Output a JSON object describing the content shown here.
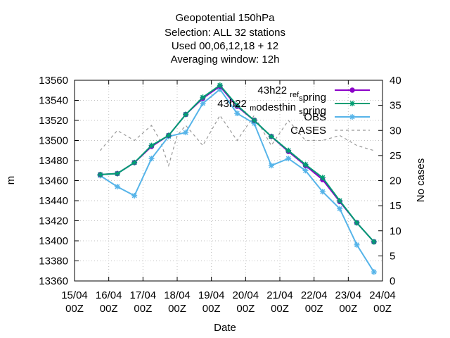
{
  "chart_data": {
    "type": "line",
    "title_lines": [
      "Geopotential 150hPa",
      "Selection: ALL      32 stations",
      "Used  00,06,12,18  + 12",
      "Averaging window: 12h"
    ],
    "xlabel": "Date",
    "ylabel": "m",
    "y2label": "No cases",
    "x_ticks": [
      {
        "pos": 0,
        "line1": "15/04",
        "line2": "00Z"
      },
      {
        "pos": 1,
        "line1": "16/04",
        "line2": "00Z"
      },
      {
        "pos": 2,
        "line1": "17/04",
        "line2": "00Z"
      },
      {
        "pos": 3,
        "line1": "18/04",
        "line2": "00Z"
      },
      {
        "pos": 4,
        "line1": "19/04",
        "line2": "00Z"
      },
      {
        "pos": 5,
        "line1": "20/04",
        "line2": "00Z"
      },
      {
        "pos": 6,
        "line1": "21/04",
        "line2": "00Z"
      },
      {
        "pos": 7,
        "line1": "22/04",
        "line2": "00Z"
      },
      {
        "pos": 8,
        "line1": "23/04",
        "line2": "00Z"
      },
      {
        "pos": 9,
        "line1": "24/04",
        "line2": "00Z"
      }
    ],
    "xlim": [
      0,
      9
    ],
    "ylim": [
      13360,
      13560
    ],
    "y_ticks": [
      13360,
      13380,
      13400,
      13420,
      13440,
      13460,
      13480,
      13500,
      13520,
      13540,
      13560
    ],
    "y2lim": [
      0,
      40
    ],
    "y2_ticks": [
      0,
      5,
      10,
      15,
      20,
      25,
      30,
      35,
      40
    ],
    "legend_position": "top-right",
    "series": [
      {
        "name": "43h22 ref_spring",
        "legend_main": "43h22 ",
        "legend_sub": "ref",
        "legend_mid": "",
        "legend_sub2": "s",
        "legend_tail": "pring",
        "color": "#8b00c8",
        "marker": "circle",
        "axis": "left",
        "x": [
          0.75,
          1.25,
          1.75,
          2.25,
          2.75,
          3.25,
          3.75,
          4.25,
          4.75,
          5.25,
          5.75,
          6.25,
          6.75,
          7.25,
          7.75,
          8.25,
          8.75
        ],
        "y": [
          13466,
          13467,
          13478,
          13494,
          13505,
          13526,
          13542,
          13554,
          13534,
          13520,
          13504,
          13489,
          13475,
          13461,
          13439,
          13418,
          13399
        ]
      },
      {
        "name": "43h22 modesthin_spring",
        "legend_main": "43h22 ",
        "legend_sub": "m",
        "legend_mid": "odesthin ",
        "legend_sub2": "s",
        "legend_tail": "pring",
        "color": "#009e73",
        "marker": "star",
        "axis": "left",
        "x": [
          0.75,
          1.25,
          1.75,
          2.25,
          2.75,
          3.25,
          3.75,
          4.25,
          4.75,
          5.25,
          5.75,
          6.25,
          6.75,
          7.25,
          7.75,
          8.25,
          8.75
        ],
        "y": [
          13466,
          13467,
          13478,
          13495,
          13505,
          13526,
          13543,
          13555,
          13535,
          13520,
          13504,
          13490,
          13476,
          13463,
          13440,
          13418,
          13399
        ]
      },
      {
        "name": "OBS",
        "color": "#56b4e9",
        "marker": "star",
        "axis": "left",
        "x": [
          0.75,
          1.25,
          1.75,
          2.25,
          2.75,
          3.25,
          3.75,
          4.25,
          4.75,
          5.25,
          5.75,
          6.25,
          6.75,
          7.25,
          7.75,
          8.25,
          8.75
        ],
        "y": [
          13465,
          13454,
          13445,
          13482,
          13504,
          13508,
          13537,
          13551,
          13527,
          13517,
          13475,
          13482,
          13470,
          13449,
          13432,
          13396,
          13369
        ]
      },
      {
        "name": "CASES",
        "color": "#999999",
        "marker": "none",
        "dash": true,
        "axis": "right",
        "x": [
          0.75,
          1.25,
          1.75,
          2.25,
          2.5,
          2.75,
          3.0,
          3.25,
          3.75,
          4.25,
          4.75,
          5.25,
          5.75,
          6.25,
          6.75,
          7.25,
          7.75,
          8.25,
          8.75
        ],
        "y": [
          26,
          30,
          28,
          31,
          28,
          23,
          29,
          31,
          27,
          33,
          28,
          33,
          27,
          32,
          28,
          28,
          29,
          27,
          26
        ]
      }
    ]
  }
}
